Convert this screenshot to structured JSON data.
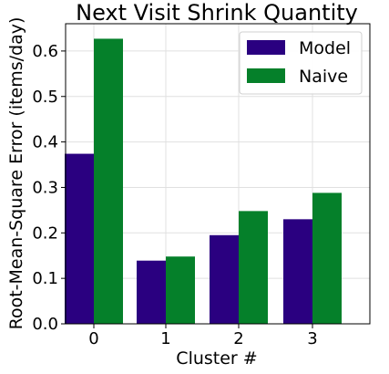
{
  "chart_data": {
    "type": "bar",
    "title": "Next Visit Shrink Quantity",
    "xlabel": "Cluster #",
    "ylabel": "Root-Mean-Square Error (items/day)",
    "categories": [
      "0",
      "1",
      "2",
      "3"
    ],
    "series": [
      {
        "name": "Model",
        "color": "#2a0080",
        "values": [
          0.374,
          0.139,
          0.195,
          0.23
        ]
      },
      {
        "name": "Naive",
        "color": "#05802a",
        "values": [
          0.627,
          0.148,
          0.248,
          0.288
        ]
      }
    ],
    "ylim": [
      0,
      0.66
    ],
    "yticks": [
      "0.0",
      "0.1",
      "0.2",
      "0.3",
      "0.4",
      "0.5",
      "0.6"
    ],
    "grid": true,
    "legend_position": "top-right"
  }
}
